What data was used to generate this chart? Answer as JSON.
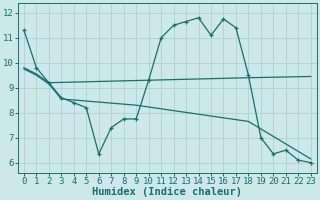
{
  "xlabel": "Humidex (Indice chaleur)",
  "background_color": "#cce8e8",
  "line_color": "#1a6e6e",
  "xlim": [
    -0.5,
    23.5
  ],
  "ylim": [
    5.6,
    12.4
  ],
  "yticks": [
    6,
    7,
    8,
    9,
    10,
    11,
    12
  ],
  "xticks": [
    0,
    1,
    2,
    3,
    4,
    5,
    6,
    7,
    8,
    9,
    10,
    11,
    12,
    13,
    14,
    15,
    16,
    17,
    18,
    19,
    20,
    21,
    22,
    23
  ],
  "line1_x": [
    0,
    1,
    2,
    3,
    4,
    5,
    6,
    7,
    8,
    9,
    10,
    11,
    12,
    13,
    14,
    15,
    16,
    17,
    18,
    19,
    20,
    21,
    22,
    23
  ],
  "line1_y": [
    11.3,
    9.8,
    9.2,
    8.6,
    8.4,
    8.2,
    6.35,
    7.4,
    7.75,
    7.75,
    9.3,
    11.0,
    11.5,
    11.65,
    11.8,
    11.1,
    11.75,
    11.4,
    9.5,
    7.0,
    6.35,
    6.5,
    6.1,
    6.0
  ],
  "line2_x": [
    0,
    1,
    2,
    10,
    18,
    23
  ],
  "line2_y": [
    9.8,
    9.55,
    9.2,
    9.3,
    9.4,
    9.45
  ],
  "line3_x": [
    0,
    1,
    2,
    3,
    9,
    18,
    19,
    20,
    21,
    22,
    23
  ],
  "line3_y": [
    9.75,
    9.5,
    9.15,
    8.55,
    8.3,
    7.65,
    7.35,
    7.05,
    6.75,
    6.45,
    6.15
  ],
  "grid_color": "#b0d0d0",
  "tick_fontsize": 6.5,
  "xlabel_fontsize": 7.5
}
